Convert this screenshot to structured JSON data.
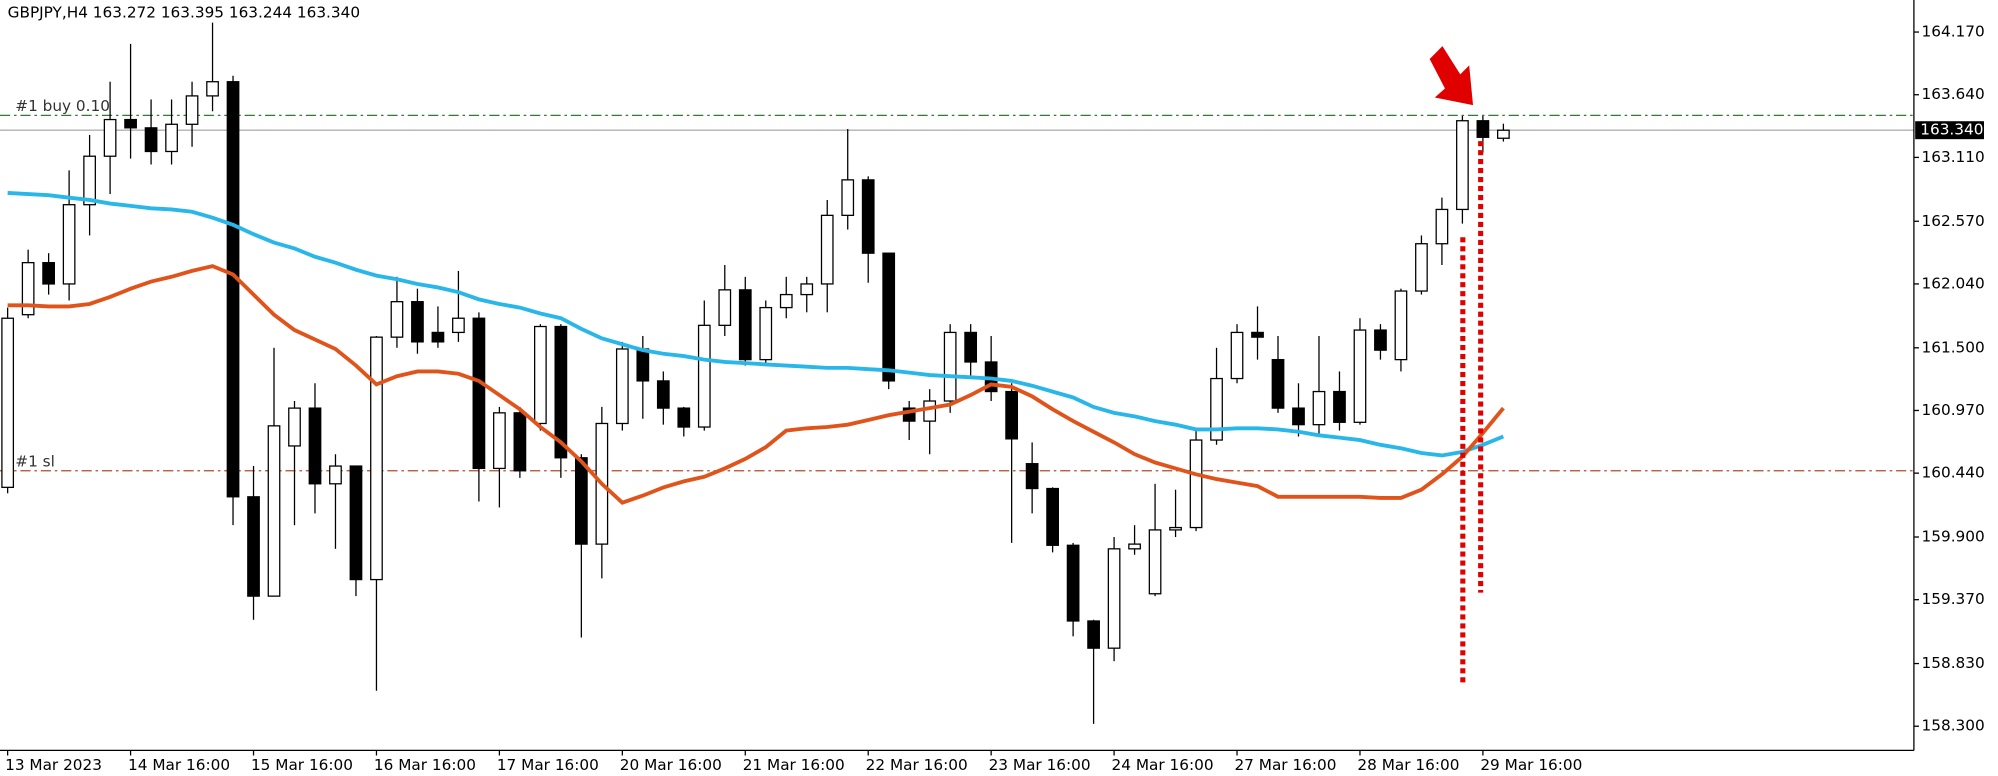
{
  "chart_data": {
    "type": "candlestick",
    "title": "GBPJPY,H4  163.272 163.395 163.244 163.340",
    "categories": [
      "13 Mar 2023",
      null,
      null,
      null,
      null,
      null,
      "14 Mar 16:00",
      null,
      null,
      null,
      null,
      null,
      "15 Mar 16:00",
      null,
      null,
      null,
      null,
      null,
      "16 Mar 16:00",
      null,
      null,
      null,
      null,
      null,
      "17 Mar 16:00",
      null,
      null,
      null,
      null,
      null,
      "20 Mar 16:00",
      null,
      null,
      null,
      null,
      null,
      "21 Mar 16:00",
      null,
      null,
      null,
      null,
      null,
      "22 Mar 16:00",
      null,
      null,
      null,
      null,
      null,
      "23 Mar 16:00",
      null,
      null,
      null,
      null,
      null,
      "24 Mar 16:00",
      null,
      null,
      null,
      null,
      null,
      "27 Mar 16:00",
      null,
      null,
      null,
      null,
      null,
      "28 Mar 16:00",
      null,
      null,
      null,
      null,
      null,
      "29 Mar 16:00",
      null
    ],
    "open": [
      160.32,
      161.78,
      162.22,
      162.04,
      162.71,
      163.12,
      163.43,
      163.36,
      163.16,
      163.39,
      163.63,
      163.75,
      160.24,
      159.4,
      160.67,
      160.99,
      160.35,
      160.5,
      159.54,
      161.59,
      161.89,
      161.63,
      161.63,
      161.75,
      160.48,
      160.95,
      160.86,
      161.68,
      160.57,
      159.84,
      160.86,
      161.49,
      161.22,
      160.99,
      160.83,
      161.69,
      161.99,
      161.4,
      161.84,
      161.95,
      162.04,
      162.62,
      162.92,
      162.3,
      160.99,
      160.88,
      161.05,
      161.63,
      161.38,
      161.13,
      160.52,
      160.31,
      159.83,
      159.19,
      158.96,
      159.8,
      159.42,
      159.96,
      159.98,
      160.72,
      161.24,
      161.63,
      161.4,
      160.99,
      160.85,
      161.13,
      160.87,
      161.65,
      161.4,
      161.98,
      162.38,
      162.67,
      163.42,
      163.272
    ],
    "high": [
      161.84,
      162.33,
      162.3,
      163.0,
      163.3,
      163.75,
      164.07,
      163.6,
      163.6,
      163.75,
      164.25,
      163.8,
      160.5,
      161.5,
      161.05,
      161.2,
      160.6,
      160.5,
      161.6,
      162.1,
      162.0,
      161.85,
      162.15,
      161.8,
      161.0,
      161.0,
      161.7,
      161.7,
      160.6,
      161.0,
      161.55,
      161.6,
      161.3,
      161.0,
      161.9,
      162.2,
      162.1,
      161.9,
      162.1,
      162.1,
      162.75,
      163.35,
      162.95,
      162.3,
      161.05,
      161.15,
      161.7,
      161.7,
      161.6,
      161.2,
      160.7,
      160.32,
      159.85,
      159.2,
      159.9,
      160.0,
      160.35,
      160.3,
      160.8,
      161.5,
      161.7,
      161.85,
      161.6,
      161.2,
      161.6,
      161.3,
      161.75,
      161.7,
      162.0,
      162.45,
      162.77,
      163.46,
      163.46,
      163.395
    ],
    "low": [
      160.27,
      161.75,
      161.95,
      161.9,
      162.45,
      162.8,
      163.1,
      163.05,
      163.05,
      163.2,
      163.5,
      160.0,
      159.2,
      159.4,
      160.0,
      160.1,
      159.8,
      159.4,
      158.6,
      161.5,
      161.45,
      161.5,
      161.55,
      160.2,
      160.15,
      160.4,
      160.8,
      160.4,
      159.05,
      159.55,
      160.8,
      160.9,
      160.85,
      160.75,
      160.8,
      161.6,
      161.35,
      161.35,
      161.75,
      161.8,
      161.8,
      162.5,
      162.05,
      161.15,
      160.72,
      160.6,
      160.95,
      161.25,
      161.05,
      159.85,
      160.1,
      159.77,
      159.06,
      158.32,
      158.85,
      159.75,
      159.4,
      159.9,
      159.95,
      160.68,
      161.2,
      161.4,
      160.95,
      160.75,
      160.75,
      160.8,
      160.85,
      161.4,
      161.3,
      161.95,
      162.2,
      162.55,
      163.15,
      163.244
    ],
    "close": [
      161.75,
      162.22,
      162.04,
      162.71,
      163.12,
      163.43,
      163.36,
      163.16,
      163.39,
      163.63,
      163.75,
      160.24,
      159.4,
      160.84,
      160.99,
      160.35,
      160.5,
      159.54,
      161.59,
      161.89,
      161.55,
      161.55,
      161.75,
      160.48,
      160.95,
      160.46,
      161.68,
      160.57,
      159.84,
      160.86,
      161.49,
      161.22,
      160.99,
      160.83,
      161.69,
      161.99,
      161.4,
      161.84,
      161.95,
      162.04,
      162.62,
      162.92,
      162.3,
      161.22,
      160.88,
      161.05,
      161.63,
      161.38,
      161.13,
      160.73,
      160.31,
      159.83,
      159.19,
      158.96,
      159.8,
      159.84,
      159.96,
      159.98,
      160.72,
      161.24,
      161.63,
      161.59,
      160.99,
      160.85,
      161.13,
      160.87,
      161.65,
      161.48,
      161.98,
      162.38,
      162.67,
      163.42,
      163.28,
      163.34
    ],
    "lines": [
      {
        "color": "#29b6e8",
        "values": [
          162.81,
          162.8,
          162.79,
          162.77,
          162.75,
          162.72,
          162.7,
          162.68,
          162.67,
          162.65,
          162.6,
          162.54,
          162.46,
          162.39,
          162.34,
          162.27,
          162.22,
          162.16,
          162.11,
          162.08,
          162.04,
          162.01,
          161.97,
          161.91,
          161.87,
          161.84,
          161.79,
          161.75,
          161.66,
          161.58,
          161.53,
          161.48,
          161.45,
          161.43,
          161.4,
          161.38,
          161.37,
          161.36,
          161.35,
          161.34,
          161.33,
          161.33,
          161.32,
          161.31,
          161.29,
          161.27,
          161.26,
          161.25,
          161.24,
          161.22,
          161.18,
          161.13,
          161.08,
          161.0,
          160.95,
          160.92,
          160.88,
          160.85,
          160.81,
          160.81,
          160.82,
          160.82,
          160.81,
          160.79,
          160.76,
          160.74,
          160.72,
          160.68,
          160.65,
          160.61,
          160.59,
          160.62,
          160.68,
          160.75
        ]
      },
      {
        "color": "#e0541c",
        "values": [
          161.86,
          161.86,
          161.85,
          161.85,
          161.87,
          161.93,
          162.0,
          162.06,
          162.1,
          162.15,
          162.19,
          162.12,
          161.95,
          161.78,
          161.65,
          161.57,
          161.49,
          161.35,
          161.19,
          161.26,
          161.3,
          161.3,
          161.28,
          161.22,
          161.1,
          160.98,
          160.83,
          160.7,
          160.54,
          160.35,
          160.19,
          160.25,
          160.32,
          160.37,
          160.41,
          160.48,
          160.56,
          160.66,
          160.8,
          160.82,
          160.83,
          160.85,
          160.89,
          160.93,
          160.96,
          160.99,
          161.02,
          161.1,
          161.19,
          161.17,
          161.09,
          160.98,
          160.88,
          160.79,
          160.7,
          160.6,
          160.53,
          160.48,
          160.43,
          160.39,
          160.36,
          160.33,
          160.24,
          160.24,
          160.24,
          160.24,
          160.24,
          160.23,
          160.23,
          160.3,
          160.43,
          160.58,
          160.78,
          160.99
        ]
      }
    ],
    "orders": [
      {
        "label": "#1 buy 0.10",
        "price": 163.465,
        "color": "#2e7d32"
      },
      {
        "label": "#1 sl",
        "price": 160.46,
        "color": "#b5492a"
      }
    ],
    "current_price": {
      "value": 163.34,
      "label": "163.340"
    },
    "ylim": [
      158.096,
      164.441
    ],
    "yticks": [
      {
        "value": 164.17,
        "label": "164.170"
      },
      {
        "value": 163.64,
        "label": "163.640"
      },
      {
        "value": 163.11,
        "label": "163.110"
      },
      {
        "value": 162.57,
        "label": "162.570"
      },
      {
        "value": 162.04,
        "label": "162.040"
      },
      {
        "value": 161.5,
        "label": "161.500"
      },
      {
        "value": 160.97,
        "label": "160.970"
      },
      {
        "value": 160.44,
        "label": "160.440"
      },
      {
        "value": 159.9,
        "label": "159.900"
      },
      {
        "value": 159.37,
        "label": "159.370"
      },
      {
        "value": 158.83,
        "label": "158.830"
      },
      {
        "value": 158.3,
        "label": "158.300"
      }
    ]
  }
}
